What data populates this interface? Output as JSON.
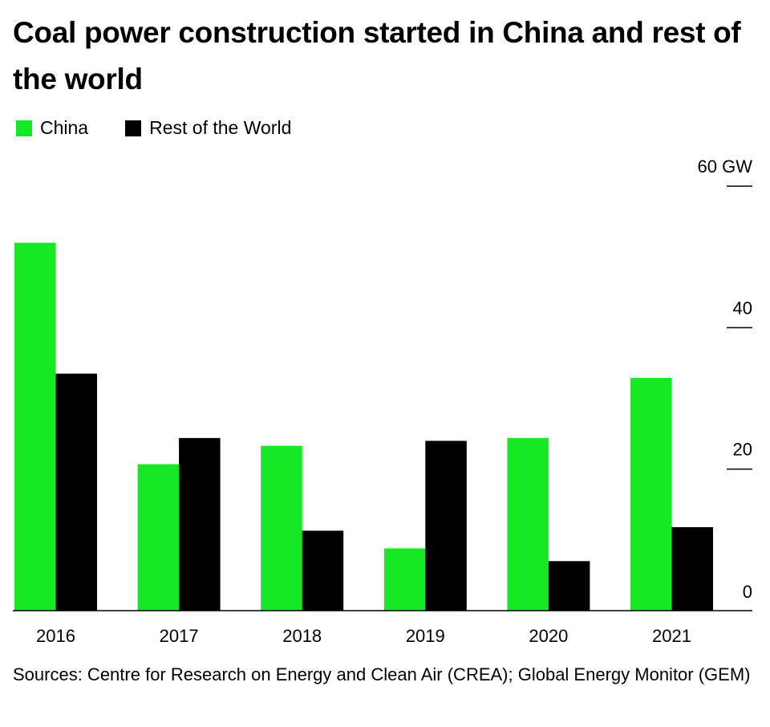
{
  "chart_data": {
    "type": "bar",
    "title": "Coal power construction started in China and rest of the world",
    "categories": [
      "2016",
      "2017",
      "2018",
      "2019",
      "2020",
      "2021"
    ],
    "series": [
      {
        "name": "China",
        "color": "#17E825",
        "values": [
          52.0,
          20.7,
          23.3,
          8.8,
          24.4,
          32.9
        ]
      },
      {
        "name": "Rest of the World",
        "color": "#000000",
        "values": [
          33.5,
          24.4,
          11.3,
          24.0,
          7.0,
          11.8
        ]
      }
    ],
    "yticks": [
      "0",
      "20",
      "40",
      "60 GW"
    ],
    "ytick_values": [
      0,
      20,
      40,
      60
    ],
    "ylim": [
      0,
      60
    ],
    "ylabel": "",
    "xlabel": "",
    "legend_position": "top-left",
    "grid": false
  },
  "source": "Sources: Centre for Research on Energy and Clean Air (CREA); Global Energy Monitor (GEM)"
}
